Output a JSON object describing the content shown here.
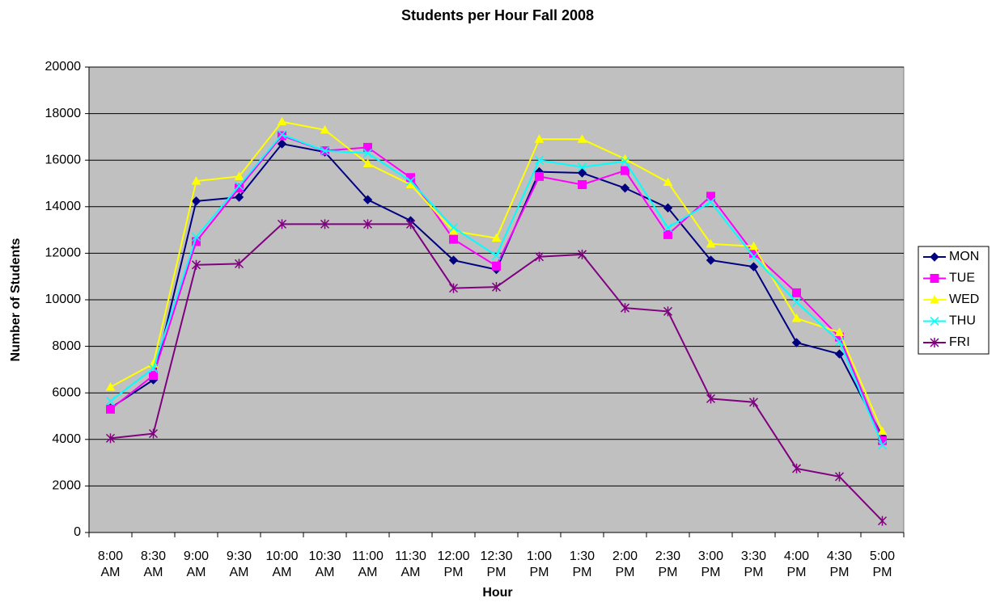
{
  "chart_data": {
    "type": "line",
    "title": "Students per Hour Fall 2008",
    "x_label": "Hour",
    "y_label": "Number of Students",
    "categories": [
      "8:00 AM",
      "8:30 AM",
      "9:00 AM",
      "9:30 AM",
      "10:00 AM",
      "10:30 AM",
      "11:00 AM",
      "11:30 AM",
      "12:00 PM",
      "12:30 PM",
      "1:00 PM",
      "1:30 PM",
      "2:00 PM",
      "2:30 PM",
      "3:00 PM",
      "3:30 PM",
      "4:00 PM",
      "4:30 PM",
      "5:00 PM"
    ],
    "ylim": [
      0,
      20000
    ],
    "yticks": [
      0,
      2000,
      4000,
      6000,
      8000,
      10000,
      12000,
      14000,
      16000,
      18000,
      20000
    ],
    "grid": true,
    "legend": "right",
    "background": "#c0c0c0",
    "series": [
      {
        "name": "MON",
        "color": "#000080",
        "marker": "diamond",
        "values": [
          5350,
          6560,
          14240,
          14410,
          16700,
          16350,
          14300,
          13400,
          11700,
          11300,
          15500,
          15450,
          14800,
          13950,
          11700,
          11420,
          8160,
          7670,
          4130
        ]
      },
      {
        "name": "TUE",
        "color": "#ff00ff",
        "marker": "square",
        "values": [
          5300,
          6750,
          12500,
          14800,
          17050,
          16400,
          16550,
          15250,
          12600,
          11450,
          15300,
          14950,
          15550,
          12800,
          14450,
          12000,
          10300,
          8400,
          3950
        ]
      },
      {
        "name": "WED",
        "color": "#ffff00",
        "marker": "triangle",
        "values": [
          6250,
          7250,
          15100,
          15300,
          17650,
          17300,
          15850,
          14950,
          12950,
          12650,
          16900,
          16900,
          16050,
          15050,
          12400,
          12300,
          9200,
          8600,
          4350
        ]
      },
      {
        "name": "THU",
        "color": "#00ffff",
        "marker": "x",
        "values": [
          5650,
          7050,
          12700,
          14900,
          17100,
          16400,
          16300,
          15100,
          13100,
          11900,
          16000,
          15700,
          15950,
          13100,
          14200,
          11850,
          9900,
          8200,
          3750
        ]
      },
      {
        "name": "FRI",
        "color": "#800080",
        "marker": "star",
        "values": [
          4050,
          4250,
          11500,
          11550,
          13250,
          13250,
          13250,
          13250,
          10500,
          10550,
          11850,
          11950,
          9650,
          9500,
          5750,
          5600,
          2750,
          2400,
          500
        ]
      }
    ]
  }
}
